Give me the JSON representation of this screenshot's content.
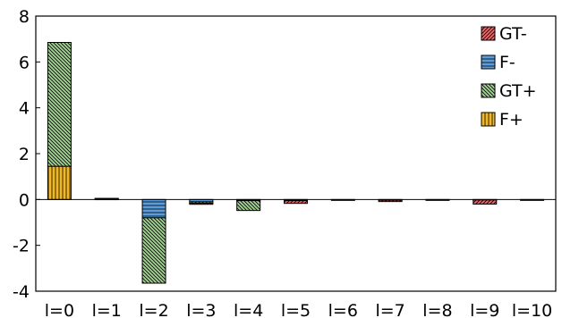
{
  "chart_data": {
    "type": "bar",
    "stacked": true,
    "categories": [
      "l=0",
      "l=1",
      "l=2",
      "l=3",
      "l=4",
      "l=5",
      "l=6",
      "l=7",
      "l=8",
      "l=9",
      "l=10"
    ],
    "series": [
      {
        "name": "GT-",
        "values": [
          0,
          0,
          0,
          -0.05,
          0,
          -0.12,
          0,
          -0.06,
          0,
          -0.18,
          0
        ],
        "color": "#e8686b",
        "pattern": "hatch-fwd"
      },
      {
        "name": "F-",
        "values": [
          0,
          0,
          -0.8,
          -0.1,
          -0.05,
          -0.05,
          -0.03,
          -0.03,
          -0.02,
          -0.02,
          -0.02
        ],
        "color": "#5b9ddb",
        "pattern": "horizontal"
      },
      {
        "name": "GT+",
        "values": [
          5.4,
          0.02,
          -2.85,
          -0.06,
          -0.43,
          0,
          0,
          0,
          0,
          0,
          0
        ],
        "color": "#9ed38c",
        "pattern": "hatch-back"
      },
      {
        "name": "F+",
        "values": [
          1.45,
          0.03,
          0,
          0,
          0,
          0,
          0,
          0,
          0,
          0,
          0
        ],
        "color": "#f2b81f",
        "pattern": "vertical"
      }
    ],
    "stack_order": {
      "positive": [
        "F+",
        "GT+"
      ],
      "negative": [
        "F-",
        "GT+",
        "GT-"
      ]
    },
    "title": "",
    "xlabel": "",
    "ylabel": "",
    "ylim": [
      -4,
      8
    ],
    "yticks": [
      "-4",
      "-2",
      "0",
      "2",
      "4",
      "6",
      "8"
    ],
    "grid": false,
    "legend": {
      "position": "top-right",
      "entries": [
        "GT-",
        "F-",
        "GT+",
        "F+"
      ]
    }
  }
}
